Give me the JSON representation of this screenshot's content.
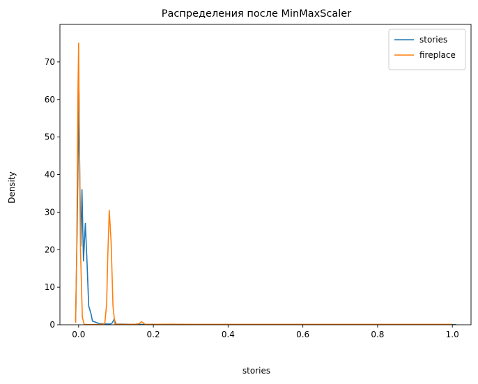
{
  "chart_data": {
    "type": "line",
    "title": "Распределения после MinMaxScaler",
    "xlabel": "stories",
    "ylabel": "Density",
    "xlim": [
      -0.05,
      1.05
    ],
    "ylim": [
      0,
      80
    ],
    "xticks": [
      0.0,
      0.2,
      0.4,
      0.6,
      0.8,
      1.0
    ],
    "xtick_labels": [
      "0.0",
      "0.2",
      "0.4",
      "0.6",
      "0.8",
      "1.0"
    ],
    "yticks": [
      0,
      10,
      20,
      30,
      40,
      50,
      60,
      70
    ],
    "ytick_labels": [
      "0",
      "10",
      "20",
      "30",
      "40",
      "50",
      "60",
      "70"
    ],
    "grid": false,
    "legend_position": "top-right",
    "series": [
      {
        "name": "stories",
        "color": "#1f77b4",
        "points": [
          [
            -0.008,
            1
          ],
          [
            -0.004,
            25
          ],
          [
            -0.001,
            48
          ],
          [
            0.001,
            62
          ],
          [
            0.003,
            40
          ],
          [
            0.006,
            21
          ],
          [
            0.009,
            36
          ],
          [
            0.013,
            17
          ],
          [
            0.018,
            27
          ],
          [
            0.022,
            18
          ],
          [
            0.027,
            5
          ],
          [
            0.033,
            3
          ],
          [
            0.037,
            1
          ],
          [
            0.045,
            0.7
          ],
          [
            0.055,
            0.3
          ],
          [
            0.065,
            0.3
          ],
          [
            0.075,
            0.2
          ],
          [
            0.085,
            0.2
          ],
          [
            0.09,
            0.5
          ],
          [
            0.095,
            1.5
          ],
          [
            0.1,
            0.2
          ],
          [
            0.15,
            0.1
          ],
          [
            0.2,
            0.1
          ],
          [
            0.3,
            0.05
          ],
          [
            0.4,
            0.05
          ],
          [
            0.6,
            0.05
          ],
          [
            0.8,
            0.05
          ],
          [
            1.01,
            0.05
          ]
        ]
      },
      {
        "name": "fireplace",
        "color": "#ff7f0e",
        "points": [
          [
            -0.008,
            0.5
          ],
          [
            -0.005,
            20
          ],
          [
            -0.002,
            60
          ],
          [
            0.0,
            75
          ],
          [
            0.002,
            50
          ],
          [
            0.005,
            20
          ],
          [
            0.01,
            2
          ],
          [
            0.015,
            0.1
          ],
          [
            0.03,
            0.05
          ],
          [
            0.06,
            0.1
          ],
          [
            0.07,
            0.3
          ],
          [
            0.075,
            5.5
          ],
          [
            0.078,
            18
          ],
          [
            0.082,
            30.5
          ],
          [
            0.087,
            22
          ],
          [
            0.092,
            5
          ],
          [
            0.097,
            0.2
          ],
          [
            0.11,
            0.1
          ],
          [
            0.15,
            0.1
          ],
          [
            0.162,
            0.3
          ],
          [
            0.168,
            0.8
          ],
          [
            0.172,
            0.6
          ],
          [
            0.178,
            0.1
          ],
          [
            0.2,
            0.1
          ],
          [
            0.25,
            0.15
          ],
          [
            0.3,
            0.1
          ],
          [
            0.4,
            0.1
          ],
          [
            0.5,
            0.1
          ],
          [
            0.6,
            0.1
          ],
          [
            0.7,
            0.1
          ],
          [
            0.8,
            0.1
          ],
          [
            0.9,
            0.1
          ],
          [
            1.0,
            0.1
          ]
        ]
      }
    ]
  }
}
